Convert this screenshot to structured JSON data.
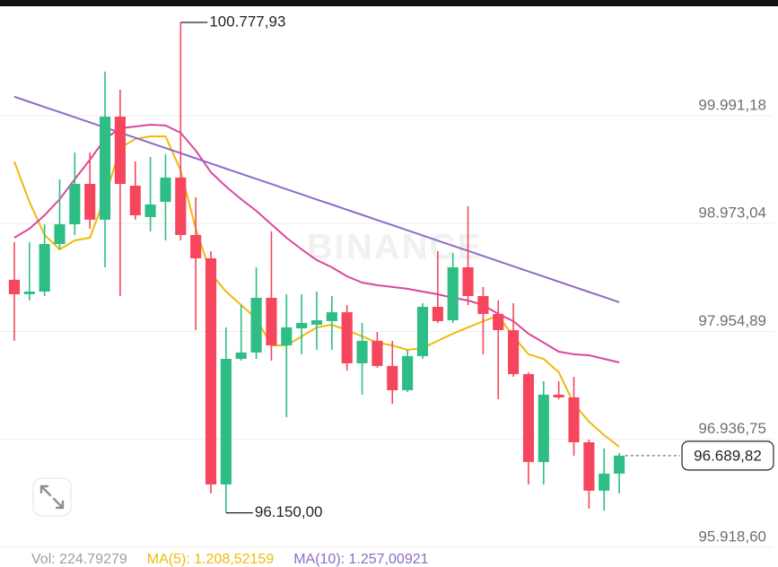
{
  "chart_data": {
    "type": "candlestick",
    "up_color": "#2ebd85",
    "down_color": "#f6465d",
    "grid": true,
    "ylim": [
      95825,
      100905
    ],
    "yticks": [
      {
        "value": 99991.18,
        "label": "99.991,18"
      },
      {
        "value": 98973.04,
        "label": "98.973,04"
      },
      {
        "value": 97954.89,
        "label": "97.954,89"
      },
      {
        "value": 96936.75,
        "label": "96.936,75"
      },
      {
        "value": 95918.6,
        "label": "95.918,60"
      }
    ],
    "open": [
      98349,
      98213,
      98238,
      98687,
      98873,
      99254,
      98916,
      99889,
      99237,
      98941,
      99085,
      99314,
      98772,
      98552,
      96418,
      97603,
      97663,
      98179,
      97730,
      97891,
      97925,
      97959,
      98043,
      97561,
      97773,
      97536,
      97307,
      97629,
      98094,
      97967,
      98467,
      98196,
      98027,
      97874,
      97459,
      96630,
      97265,
      97239,
      96816,
      96359,
      96520
    ],
    "high": [
      98704,
      98704,
      98873,
      99297,
      99551,
      99551,
      100313,
      100143,
      99466,
      99508,
      99534,
      100777.93,
      99127,
      98619,
      97900,
      98111,
      98467,
      98806,
      98213,
      98213,
      98238,
      98196,
      98111,
      97942,
      97857,
      97773,
      97688,
      98128,
      98619,
      98602,
      99043,
      98281,
      98154,
      98128,
      97476,
      97392,
      97392,
      97434,
      96841,
      96757,
      96714
    ],
    "low": [
      97773,
      98154,
      98196,
      98636,
      98772,
      98831,
      98467,
      98196,
      98916,
      98806,
      98721,
      98721,
      97874,
      96333,
      96150.0,
      97586,
      97603,
      97586,
      97053,
      97646,
      97688,
      97688,
      97493,
      97265,
      97519,
      97180,
      97290,
      97603,
      97942,
      97942,
      98111,
      97646,
      97222,
      97434,
      96418,
      96418,
      97222,
      96689,
      96190,
      96170,
      96333
    ],
    "close": [
      98213,
      98238,
      98687,
      98873,
      99254,
      98916,
      99889,
      99254,
      98958,
      99060,
      99314,
      98772,
      98552,
      96418,
      97603,
      97663,
      98179,
      97730,
      97900,
      97942,
      97967,
      98043,
      97561,
      97773,
      97536,
      97307,
      97629,
      98094,
      97959,
      98467,
      98196,
      98027,
      97874,
      97459,
      96630,
      97265,
      97239,
      96816,
      96359,
      96520,
      96689.82
    ],
    "lines": [
      {
        "color": "#f0b90b",
        "values": [
          99466,
          99085,
          98772,
          98636,
          98721,
          98746,
          99127,
          99593,
          99678,
          99703,
          99703,
          99381,
          98831,
          98408,
          98238,
          98111,
          97984,
          97730,
          97730,
          97815,
          97900,
          97925,
          97874,
          97815,
          97756,
          97730,
          97688,
          97705,
          97773,
          97840,
          97900,
          97959,
          98010,
          97815,
          97646,
          97603,
          97476,
          97180,
          97010,
          96883,
          96773
        ]
      },
      {
        "color": "#d9479e",
        "values": [
          98746,
          98831,
          98958,
          99110,
          99297,
          99483,
          99678,
          99779,
          99796,
          99813,
          99805,
          99737,
          99568,
          99364,
          99229,
          99110,
          99000,
          98873,
          98746,
          98636,
          98535,
          98467,
          98382,
          98323,
          98298,
          98281,
          98264,
          98238,
          98213,
          98179,
          98154,
          98111,
          98027,
          97959,
          97840,
          97756,
          97671,
          97646,
          97637,
          97603,
          97569
        ]
      },
      {
        "color": "#8e6cc4",
        "values": [
          100077,
          100029,
          99980,
          99932,
          99883,
          99835,
          99786,
          99738,
          99689,
          99641,
          99592,
          99544,
          99495,
          99447,
          99398,
          99350,
          99301,
          99253,
          99204,
          99156,
          99107,
          99059,
          99010,
          98962,
          98913,
          98865,
          98816,
          98768,
          98719,
          98671,
          98622,
          98574,
          98525,
          98477,
          98428,
          98380,
          98331,
          98283,
          98234,
          98186,
          98137
        ]
      }
    ],
    "annotations": [
      {
        "value": 100777.93,
        "label": "100.777,93"
      },
      {
        "value": 96150.0,
        "label": "96.150,00"
      }
    ],
    "last_price": {
      "value": 96689.82,
      "label": "96.689,82"
    },
    "watermark": "BINANCE",
    "footer": [
      {
        "text": "Vol: 224.79279",
        "color": "#9aa0a6"
      },
      {
        "text": "MA(5): 1.208,52159",
        "color": "#f0b90b"
      },
      {
        "text": "MA(10): 1.257,00921",
        "color": "#8e6cc4"
      }
    ]
  }
}
